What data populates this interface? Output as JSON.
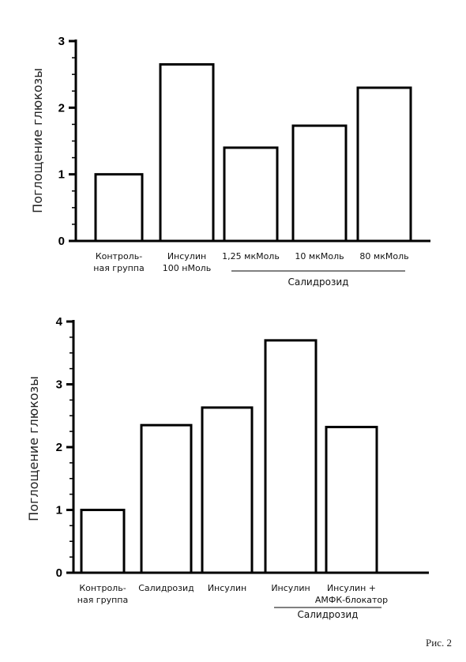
{
  "figure_caption": "Рис. 2",
  "chart_data": [
    {
      "type": "bar",
      "ylabel": "Поглощение глюкозы",
      "ylim": [
        0,
        3
      ],
      "yticks": [
        "0",
        "1",
        "2",
        "3"
      ],
      "grid": false,
      "categories": [
        [
          "Контроль-",
          "ная группа"
        ],
        [
          "Инсулин",
          "100 нМоль"
        ],
        [
          "1,25 мкМоль"
        ],
        [
          "10 мкМоль"
        ],
        [
          "80 мкМоль"
        ]
      ],
      "values": [
        1.0,
        2.65,
        1.4,
        1.73,
        2.3
      ],
      "group_label": {
        "text": "Салидрозид",
        "from_index": 2,
        "to_index": 4
      }
    },
    {
      "type": "bar",
      "ylabel": "Поглощение глюкозы",
      "ylim": [
        0,
        4
      ],
      "yticks": [
        "0",
        "1",
        "2",
        "3",
        "4"
      ],
      "grid": false,
      "categories": [
        [
          "Контроль-",
          "ная группа"
        ],
        [
          "Салидрозид"
        ],
        [
          "Инсулин"
        ],
        [
          "Инсулин"
        ],
        [
          "Инсулин +",
          "АМФК-блокатор"
        ]
      ],
      "values": [
        1.0,
        2.35,
        2.63,
        3.7,
        2.32
      ],
      "group_label": {
        "text": "Салидрозид",
        "from_index": 3,
        "to_index": 4
      }
    }
  ]
}
